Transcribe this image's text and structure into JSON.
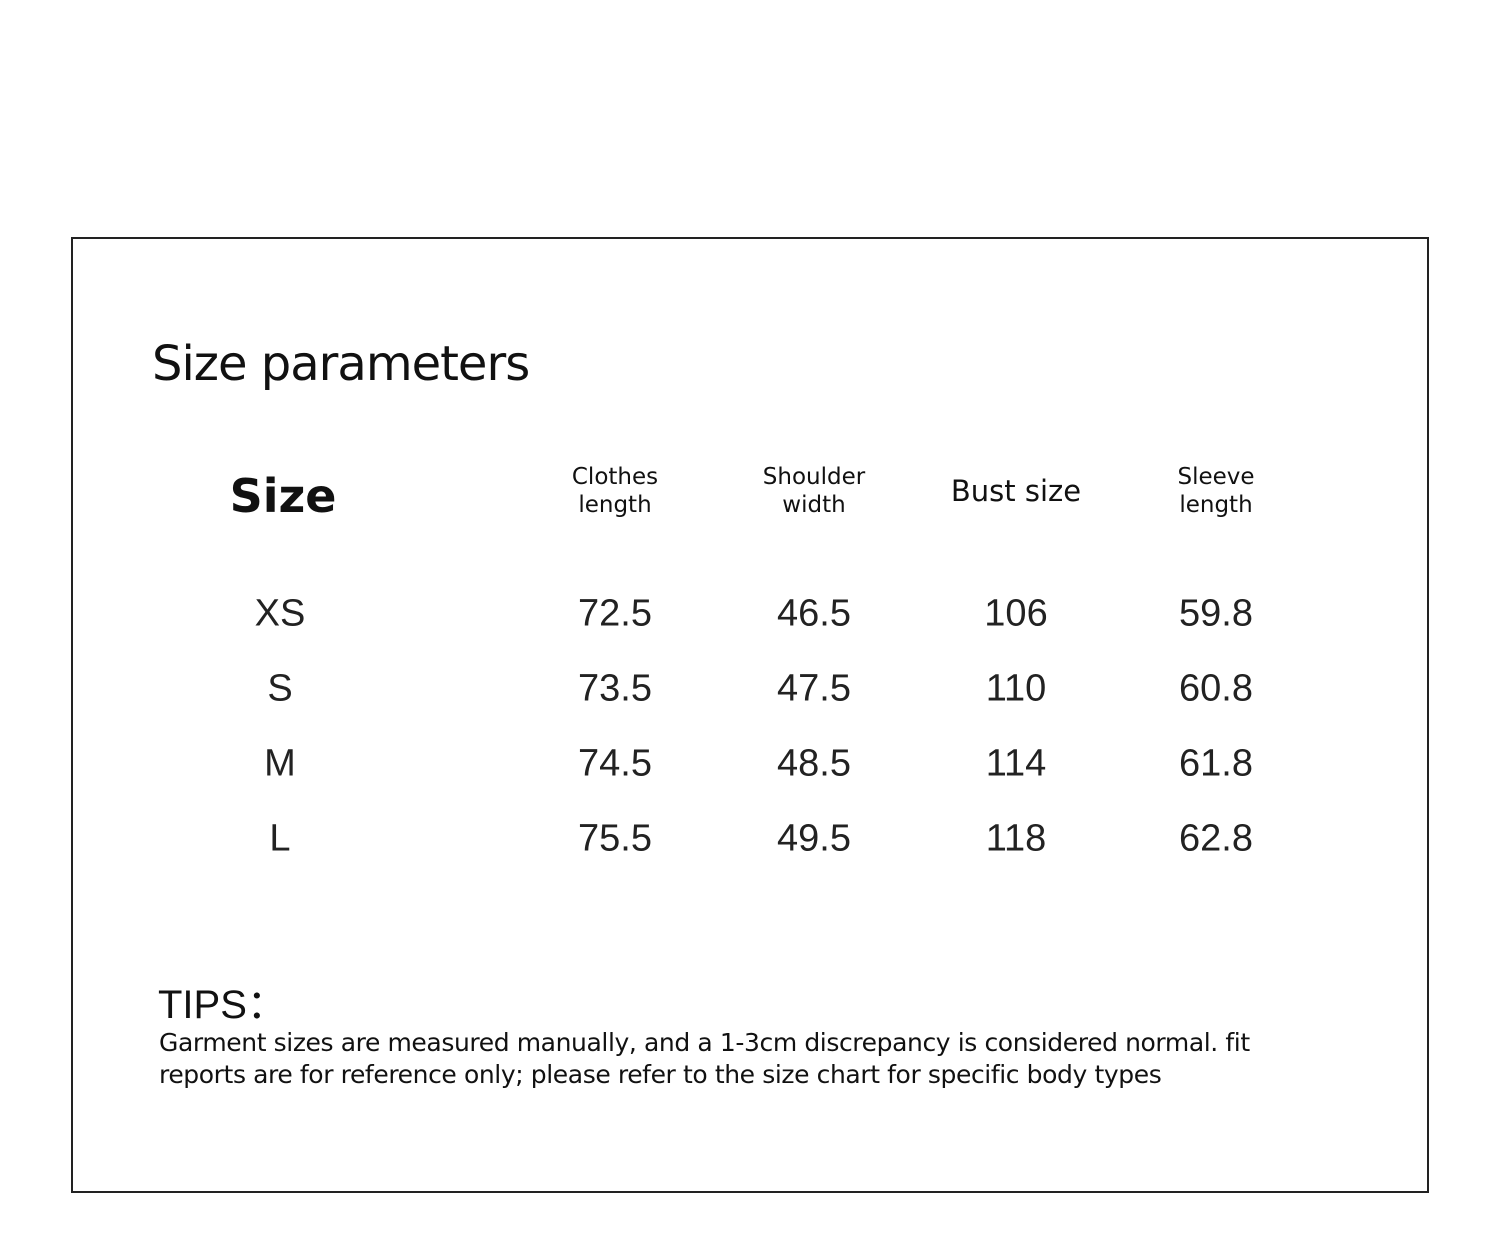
{
  "header": {
    "title": "Size parameters"
  },
  "table": {
    "columns": [
      "Size",
      "Clothes length",
      "Shoulder width",
      "Bust size",
      "Sleeve length"
    ],
    "rows": [
      [
        "XS",
        "72.5",
        "46.5",
        "106",
        "59.8"
      ],
      [
        "S",
        "73.5",
        "47.5",
        "110",
        "60.8"
      ],
      [
        "M",
        "74.5",
        "48.5",
        "114",
        "61.8"
      ],
      [
        "L",
        "75.5",
        "49.5",
        "118",
        "62.8"
      ]
    ]
  },
  "tips": {
    "title": "TIPS：",
    "text": "Garment sizes are measured manually, and a 1-3cm discrepancy is considered normal. fit reports are for reference only; please refer to the size chart for specific body types"
  }
}
